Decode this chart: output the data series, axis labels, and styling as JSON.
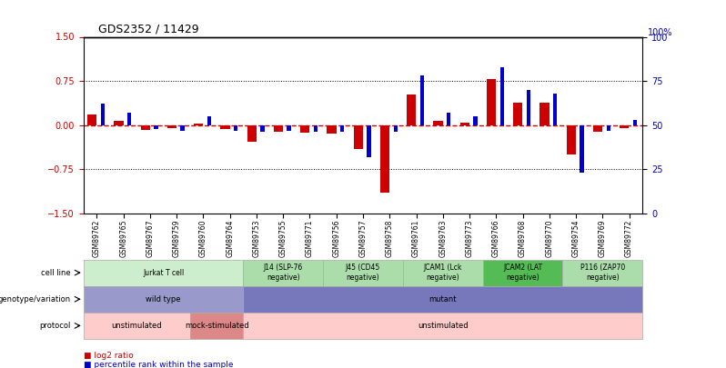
{
  "title": "GDS2352 / 11429",
  "samples": [
    "GSM89762",
    "GSM89765",
    "GSM89767",
    "GSM89759",
    "GSM89760",
    "GSM89764",
    "GSM89753",
    "GSM89755",
    "GSM89771",
    "GSM89756",
    "GSM89757",
    "GSM89758",
    "GSM89761",
    "GSM89763",
    "GSM89773",
    "GSM89766",
    "GSM89768",
    "GSM89770",
    "GSM89754",
    "GSM89769",
    "GSM89772"
  ],
  "log2_ratio": [
    0.18,
    0.07,
    -0.08,
    -0.05,
    0.03,
    -0.06,
    -0.28,
    -0.12,
    -0.13,
    -0.15,
    -0.4,
    -1.15,
    0.52,
    0.08,
    0.04,
    0.78,
    0.38,
    0.38,
    -0.5,
    -0.12,
    -0.05
  ],
  "percentile": [
    62,
    57,
    48,
    47,
    55,
    47,
    46,
    47,
    46,
    46,
    32,
    46,
    78,
    57,
    55,
    83,
    70,
    68,
    23,
    47,
    53
  ],
  "ylim": [
    -1.5,
    1.5
  ],
  "y2lim": [
    0,
    100
  ],
  "yticks_left": [
    -1.5,
    -0.75,
    0,
    0.75,
    1.5
  ],
  "yticks_right": [
    0,
    25,
    50,
    75,
    100
  ],
  "hlines": [
    0.75,
    -0.75
  ],
  "bar_color_red": "#cc0000",
  "bar_color_blue": "#0000cc",
  "zero_line_color": "#cc0000",
  "cell_line_groups": [
    {
      "label": "Jurkat T cell",
      "start": 0,
      "end": 5,
      "color": "#cceecc"
    },
    {
      "label": "J14 (SLP-76\nnegative)",
      "start": 6,
      "end": 8,
      "color": "#aaddaa"
    },
    {
      "label": "J45 (CD45\nnegative)",
      "start": 9,
      "end": 11,
      "color": "#aaddaa"
    },
    {
      "label": "JCAM1 (Lck\nnegative)",
      "start": 12,
      "end": 14,
      "color": "#aaddaa"
    },
    {
      "label": "JCAM2 (LAT\nnegative)",
      "start": 15,
      "end": 17,
      "color": "#55bb55"
    },
    {
      "label": "P116 (ZAP70\nnegative)",
      "start": 18,
      "end": 20,
      "color": "#aaddaa"
    }
  ],
  "genotype_groups": [
    {
      "label": "wild type",
      "start": 0,
      "end": 5,
      "color": "#9999cc"
    },
    {
      "label": "mutant",
      "start": 6,
      "end": 20,
      "color": "#7777bb"
    }
  ],
  "protocol_groups": [
    {
      "label": "unstimulated",
      "start": 0,
      "end": 3,
      "color": "#ffcccc"
    },
    {
      "label": "mock-stimulated",
      "start": 4,
      "end": 5,
      "color": "#dd8888"
    },
    {
      "label": "unstimulated",
      "start": 6,
      "end": 20,
      "color": "#ffcccc"
    }
  ],
  "legend_red": "log2 ratio",
  "legend_blue": "percentile rank within the sample"
}
